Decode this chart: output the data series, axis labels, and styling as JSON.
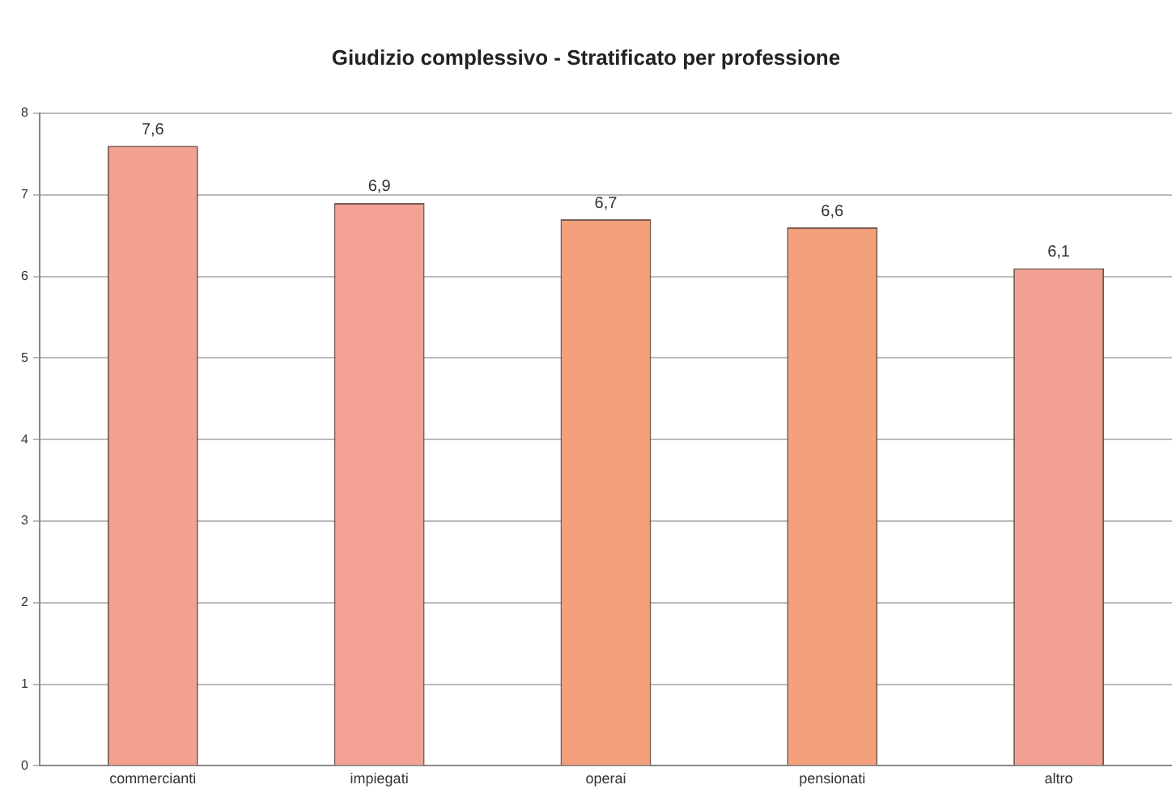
{
  "chart_data": {
    "type": "bar",
    "title": "Giudizio complessivo - Stratificato per professione",
    "categories": [
      "commercianti",
      "impiegati",
      "operai",
      "pensionati",
      "altro"
    ],
    "values": [
      7.6,
      6.9,
      6.7,
      6.6,
      6.1
    ],
    "value_labels": [
      "7,6",
      "6,9",
      "6,7",
      "6,6",
      "6,1"
    ],
    "colors": [
      "#f3a08f",
      "#f3a294",
      "#f4a07a",
      "#f4a07a",
      "#f3a093"
    ],
    "ylim": [
      0,
      8
    ],
    "yticks": [
      0,
      1,
      2,
      3,
      4,
      5,
      6,
      7,
      8
    ],
    "grid": "y",
    "legend": false
  }
}
